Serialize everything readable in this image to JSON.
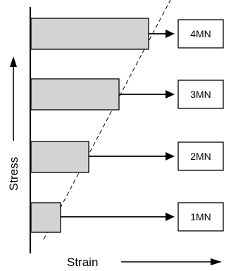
{
  "labels": {
    "y_axis": "Stress",
    "x_axis": "Strain"
  },
  "stages": [
    {
      "label": "4MN"
    },
    {
      "label": "3MN"
    },
    {
      "label": "2MN"
    },
    {
      "label": "1MN"
    }
  ],
  "colors": {
    "bar_fill": "#d3d3d3",
    "stroke": "#000000",
    "box_fill": "#ffffff"
  }
}
